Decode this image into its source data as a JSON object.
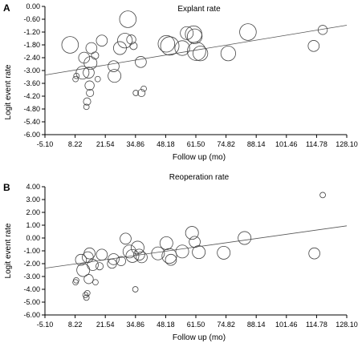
{
  "chart_data": [
    {
      "panel": "A",
      "type": "scatter",
      "title": "Explant rate",
      "xlabel": "Follow up (mo)",
      "ylabel": "Logit event rate",
      "xlim": [
        -5.1,
        128.1
      ],
      "ylim": [
        -6.0,
        0.0
      ],
      "x_ticks": [
        "-5.10",
        "8.22",
        "21.54",
        "34.86",
        "48.18",
        "61.50",
        "74.82",
        "88.14",
        "101.46",
        "114.78",
        "128.10"
      ],
      "y_ticks": [
        "0.00",
        "-0.60",
        "-1.20",
        "-1.80",
        "-2.40",
        "-3.00",
        "-3.60",
        "-4.20",
        "-4.80",
        "-5.40",
        "-6.00"
      ],
      "grid": false,
      "regression_line": {
        "x": [
          -5.1,
          128.1
        ],
        "y": [
          -3.21,
          -0.88
        ]
      },
      "points": [
        {
          "x": 6.0,
          "y": -1.8,
          "w": 9
        },
        {
          "x": 8.4,
          "y": -3.4,
          "w": 3
        },
        {
          "x": 8.8,
          "y": -3.25,
          "w": 3
        },
        {
          "x": 11.5,
          "y": -3.1,
          "w": 7
        },
        {
          "x": 12.2,
          "y": -2.4,
          "w": 6
        },
        {
          "x": 13.2,
          "y": -4.7,
          "w": 3
        },
        {
          "x": 13.5,
          "y": -4.45,
          "w": 4
        },
        {
          "x": 14.8,
          "y": -4.05,
          "w": 4
        },
        {
          "x": 14.6,
          "y": -3.7,
          "w": 5
        },
        {
          "x": 14.2,
          "y": -3.1,
          "w": 6
        },
        {
          "x": 15.0,
          "y": -2.65,
          "w": 7
        },
        {
          "x": 15.4,
          "y": -1.95,
          "w": 6
        },
        {
          "x": 17.0,
          "y": -2.3,
          "w": 4
        },
        {
          "x": 18.2,
          "y": -3.4,
          "w": 3
        },
        {
          "x": 20.0,
          "y": -1.6,
          "w": 6
        },
        {
          "x": 25.2,
          "y": -2.8,
          "w": 6
        },
        {
          "x": 25.6,
          "y": -3.25,
          "w": 7
        },
        {
          "x": 28.0,
          "y": -1.95,
          "w": 7
        },
        {
          "x": 30.2,
          "y": -1.6,
          "w": 8
        },
        {
          "x": 31.5,
          "y": -0.6,
          "w": 9
        },
        {
          "x": 33.0,
          "y": -1.55,
          "w": 5
        },
        {
          "x": 34.0,
          "y": -1.85,
          "w": 4
        },
        {
          "x": 35.0,
          "y": -4.05,
          "w": 3
        },
        {
          "x": 37.2,
          "y": -2.6,
          "w": 6
        },
        {
          "x": 37.5,
          "y": -4.05,
          "w": 4
        },
        {
          "x": 38.5,
          "y": -3.85,
          "w": 3
        },
        {
          "x": 48.5,
          "y": -1.75,
          "w": 9
        },
        {
          "x": 50.0,
          "y": -1.85,
          "w": 10
        },
        {
          "x": 55.5,
          "y": -1.95,
          "w": 8
        },
        {
          "x": 57.5,
          "y": -1.25,
          "w": 7
        },
        {
          "x": 60.5,
          "y": -1.3,
          "w": 9
        },
        {
          "x": 61.0,
          "y": -1.4,
          "w": 8
        },
        {
          "x": 61.8,
          "y": -2.1,
          "w": 10
        },
        {
          "x": 63.5,
          "y": -2.2,
          "w": 8
        },
        {
          "x": 75.8,
          "y": -2.2,
          "w": 8
        },
        {
          "x": 84.5,
          "y": -1.2,
          "w": 9
        },
        {
          "x": 113.5,
          "y": -1.85,
          "w": 6
        },
        {
          "x": 117.5,
          "y": -1.1,
          "w": 5
        }
      ]
    },
    {
      "panel": "B",
      "type": "scatter",
      "title": "Reoperation rate",
      "xlabel": "Follow up (mo)",
      "ylabel": "Logit event rate",
      "xlim": [
        -5.1,
        128.1
      ],
      "ylim": [
        -6.0,
        4.0
      ],
      "x_ticks": [
        "-5.10",
        "8.22",
        "21.54",
        "34.86",
        "48.18",
        "61.50",
        "74.82",
        "88.14",
        "101.46",
        "114.78",
        "128.10"
      ],
      "y_ticks": [
        "4.00",
        "3.00",
        "2.00",
        "1.00",
        "0.00",
        "-1.00",
        "-2.00",
        "-3.00",
        "-4.00",
        "-5.00",
        "-6.00"
      ],
      "grid": false,
      "regression_line": {
        "x": [
          -5.1,
          128.1
        ],
        "y": [
          -2.35,
          0.95
        ]
      },
      "points": [
        {
          "x": 8.4,
          "y": -3.45,
          "w": 3
        },
        {
          "x": 8.7,
          "y": -3.3,
          "w": 3
        },
        {
          "x": 10.8,
          "y": -1.7,
          "w": 6
        },
        {
          "x": 11.8,
          "y": -2.5,
          "w": 7
        },
        {
          "x": 12.8,
          "y": -4.45,
          "w": 3
        },
        {
          "x": 13.2,
          "y": -4.65,
          "w": 3
        },
        {
          "x": 13.6,
          "y": -4.3,
          "w": 3
        },
        {
          "x": 13.8,
          "y": -1.5,
          "w": 6
        },
        {
          "x": 14.6,
          "y": -1.2,
          "w": 6
        },
        {
          "x": 14.2,
          "y": -3.2,
          "w": 5
        },
        {
          "x": 16.0,
          "y": -2.1,
          "w": 6
        },
        {
          "x": 17.2,
          "y": -3.45,
          "w": 3
        },
        {
          "x": 19.0,
          "y": -2.2,
          "w": 4
        },
        {
          "x": 20.0,
          "y": -1.3,
          "w": 6
        },
        {
          "x": 24.5,
          "y": -2.0,
          "w": 5
        },
        {
          "x": 25.2,
          "y": -1.65,
          "w": 6
        },
        {
          "x": 28.5,
          "y": -1.8,
          "w": 5
        },
        {
          "x": 30.5,
          "y": -0.05,
          "w": 6
        },
        {
          "x": 32.2,
          "y": -1.05,
          "w": 7
        },
        {
          "x": 33.5,
          "y": -1.4,
          "w": 7
        },
        {
          "x": 34.8,
          "y": -4.0,
          "w": 3
        },
        {
          "x": 35.8,
          "y": -0.75,
          "w": 7
        },
        {
          "x": 36.5,
          "y": -1.3,
          "w": 6
        },
        {
          "x": 37.6,
          "y": -1.5,
          "w": 6
        },
        {
          "x": 44.8,
          "y": -1.2,
          "w": 7
        },
        {
          "x": 48.5,
          "y": -0.4,
          "w": 7
        },
        {
          "x": 49.8,
          "y": -1.4,
          "w": 8
        },
        {
          "x": 50.5,
          "y": -1.7,
          "w": 6
        },
        {
          "x": 55.5,
          "y": -1.05,
          "w": 7
        },
        {
          "x": 59.8,
          "y": 0.4,
          "w": 7
        },
        {
          "x": 61.0,
          "y": -0.3,
          "w": 6
        },
        {
          "x": 62.8,
          "y": -1.1,
          "w": 7
        },
        {
          "x": 73.8,
          "y": -1.15,
          "w": 7
        },
        {
          "x": 83.0,
          "y": 0.0,
          "w": 7
        },
        {
          "x": 113.8,
          "y": -1.2,
          "w": 6
        },
        {
          "x": 117.5,
          "y": 3.35,
          "w": 3
        }
      ]
    }
  ]
}
